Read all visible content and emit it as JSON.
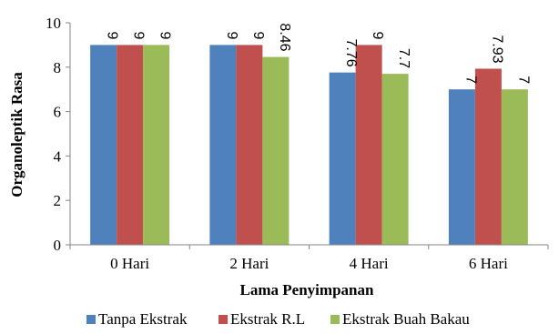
{
  "chart_data": {
    "type": "bar",
    "title": "",
    "xlabel": "Lama Penyimpanan",
    "ylabel": "Organoleptik Rasa",
    "categories": [
      "0 Hari",
      "2 Hari",
      "4 Hari",
      "6 Hari"
    ],
    "ylim": [
      0,
      10
    ],
    "yticks": [
      "0",
      "2",
      "4",
      "6",
      "8",
      "10"
    ],
    "grid": false,
    "legend_position": "bottom",
    "series": [
      {
        "name": "Tanpa Ekstrak",
        "color": "#4F81BD",
        "values": [
          9,
          9,
          7.76,
          7
        ],
        "labels": [
          "9",
          "9",
          "7.76",
          "7"
        ]
      },
      {
        "name": "Ekstrak R.L",
        "color": "#C0504D",
        "values": [
          9,
          9,
          9,
          7.93
        ],
        "labels": [
          "9",
          "9",
          "9",
          "7.93"
        ]
      },
      {
        "name": "Ekstrak Buah Bakau",
        "color": "#9BBB59",
        "values": [
          9,
          8.46,
          7.7,
          7
        ],
        "labels": [
          "9",
          "8.46",
          "7.7",
          "7"
        ]
      }
    ]
  }
}
